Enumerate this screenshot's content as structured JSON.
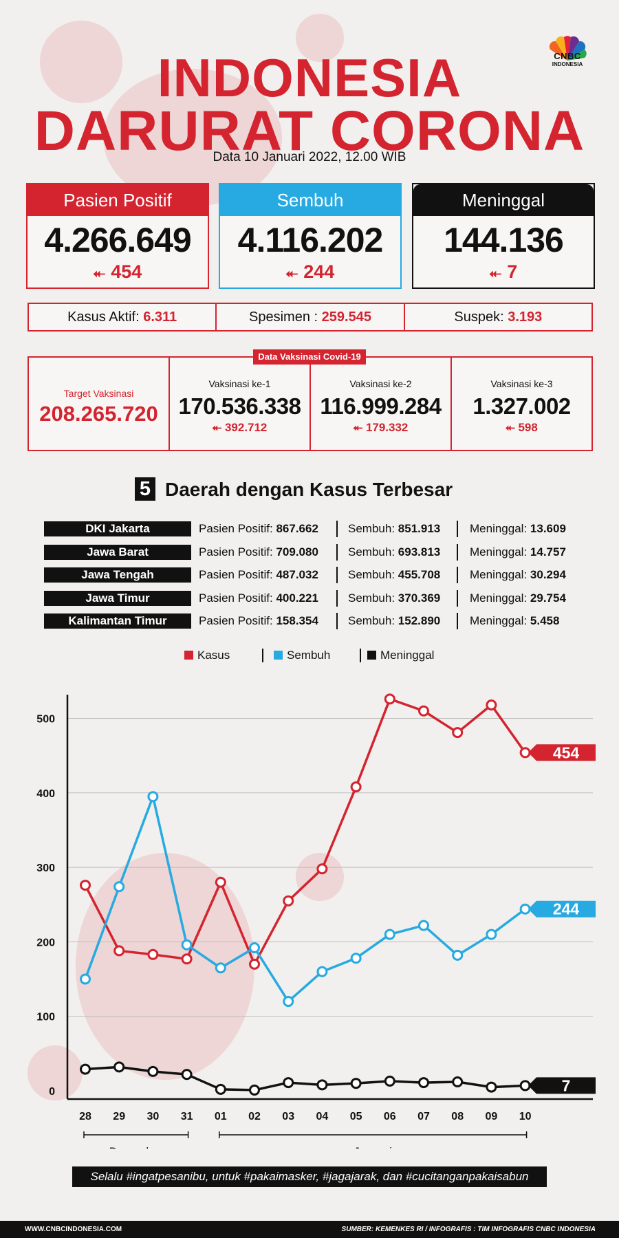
{
  "header": {
    "title_line1": "INDONESIA",
    "title_line2": "DARURAT CORONA",
    "date_line": "Data 10 Januari 2022, 12.00 WIB",
    "logo_text": "CNBC",
    "logo_sub": "INDONESIA"
  },
  "colors": {
    "red": "#d3242f",
    "blue": "#27aae1",
    "black": "#111111"
  },
  "cards": [
    {
      "label": "Pasien Positif",
      "value": "4.266.649",
      "increase": "454",
      "color": "#d3242f"
    },
    {
      "label": "Sembuh",
      "value": "4.116.202",
      "increase": "244",
      "color": "#27aae1"
    },
    {
      "label": "Meninggal",
      "value": "144.136",
      "increase": "7",
      "color": "#111111"
    }
  ],
  "stats": [
    {
      "label": "Kasus Aktif:",
      "value": "6.311"
    },
    {
      "label": "Spesimen :",
      "value": "259.545"
    },
    {
      "label": "Suspek:",
      "value": "3.193"
    }
  ],
  "vaccination": {
    "tag": "Data Vaksinasi Covid-19",
    "target_label": "Target Vaksinasi",
    "target_value": "208.265.720",
    "doses": [
      {
        "label": "Vaksinasi ke-1",
        "value": "170.536.338",
        "increase": "392.712"
      },
      {
        "label": "Vaksinasi ke-2",
        "value": "116.999.284",
        "increase": "179.332"
      },
      {
        "label": "Vaksinasi ke-3",
        "value": "1.327.002",
        "increase": "598"
      }
    ]
  },
  "regions_section": {
    "number": "5",
    "title": "Daerah dengan Kasus Terbesar",
    "positif_label": "Pasien Positif:",
    "sembuh_label": "Sembuh:",
    "meninggal_label": "Meninggal:",
    "rows": [
      {
        "name": "DKI Jakarta",
        "positif": "867.662",
        "sembuh": "851.913",
        "meninggal": "13.609"
      },
      {
        "name": "Jawa Barat",
        "positif": "709.080",
        "sembuh": "693.813",
        "meninggal": "14.757"
      },
      {
        "name": "Jawa Tengah",
        "positif": "487.032",
        "sembuh": "455.708",
        "meninggal": "30.294"
      },
      {
        "name": "Jawa Timur",
        "positif": "400.221",
        "sembuh": "370.369",
        "meninggal": "29.754"
      },
      {
        "name": "Kalimantan Timur",
        "positif": "158.354",
        "sembuh": "152.890",
        "meninggal": "5.458"
      }
    ]
  },
  "chart_data": {
    "type": "line",
    "x": [
      "28",
      "29",
      "30",
      "31",
      "01",
      "02",
      "03",
      "04",
      "05",
      "06",
      "07",
      "08",
      "09",
      "10"
    ],
    "month_groups": [
      {
        "label": "Desember",
        "from": "28",
        "to": "31"
      },
      {
        "label": "Januari",
        "from": "01",
        "to": "10"
      }
    ],
    "ylim": [
      0,
      530
    ],
    "yticks": [
      0,
      100,
      200,
      300,
      400,
      500
    ],
    "grid": true,
    "legend_position": "top-center",
    "series": [
      {
        "name": "Kasus",
        "color": "#d3242f",
        "values": [
          276,
          188,
          183,
          177,
          280,
          170,
          255,
          298,
          408,
          526,
          510,
          481,
          518,
          454
        ],
        "end_label": "454"
      },
      {
        "name": "Sembuh",
        "color": "#27aae1",
        "values": [
          150,
          274,
          395,
          196,
          165,
          192,
          120,
          160,
          178,
          210,
          222,
          182,
          210,
          244
        ],
        "end_label": "244"
      },
      {
        "name": "Meninggal",
        "color": "#111111",
        "values": [
          29,
          32,
          26,
          22,
          2,
          1,
          11,
          8,
          10,
          13,
          11,
          12,
          5,
          7
        ],
        "end_label": "7"
      }
    ]
  },
  "footer": {
    "quote": "Selalu #ingatpesanibu, untuk #pakaimasker, #jagajarak, dan #cucitanganpakaisabun",
    "website": "WWW.CNBCINDONESIA.COM",
    "source": "SUMBER: KEMENKES RI / INFOGRAFIS : TIM INFOGRAFIS CNBC INDONESIA"
  }
}
